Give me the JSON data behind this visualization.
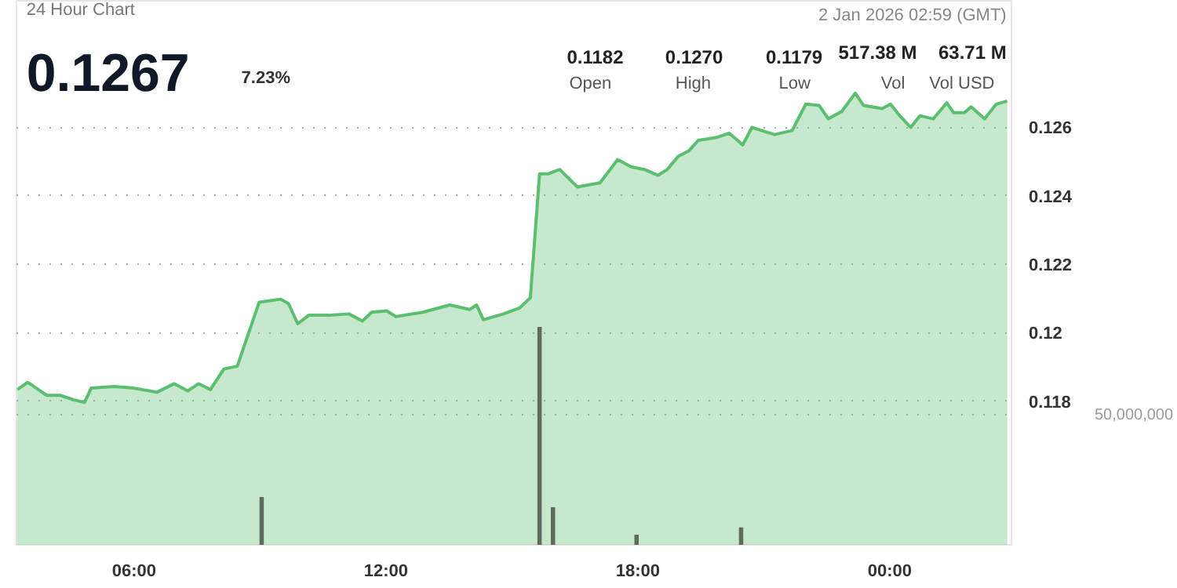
{
  "chart_data": {
    "type": "area",
    "title": "0.1267",
    "subtitle": "24 Hour Chart",
    "annotations": [
      "7.23%",
      "2 Jan 2026 02:59 (GMT)",
      "0.1182",
      "Open",
      "0.1270",
      "High",
      "0.1179",
      "Low",
      "517.38 M",
      "Vol",
      "63.71 M",
      "Vol USD"
    ],
    "x": [
      3.22,
      3.47,
      3.92,
      4.24,
      4.56,
      4.82,
      4.98,
      5.52,
      6.0,
      6.54,
      6.96,
      7.28,
      7.54,
      7.82,
      8.14,
      8.46,
      8.98,
      9.49,
      9.68,
      9.9,
      10.16,
      10.64,
      11.12,
      11.44,
      11.66,
      12.02,
      12.24,
      12.88,
      13.52,
      14.0,
      14.16,
      14.32,
      14.8,
      15.18,
      15.44,
      15.66,
      15.86,
      16.14,
      16.56,
      17.1,
      17.52,
      17.84,
      18.16,
      18.48,
      18.7,
      18.96,
      19.22,
      19.44,
      19.86,
      20.18,
      20.5,
      20.72,
      20.94,
      21.26,
      21.68,
      22.0,
      22.32,
      22.54,
      22.86,
      23.18,
      23.38,
      23.82,
      24.02,
      24.24,
      24.5,
      24.72,
      25.04,
      25.36,
      25.52,
      25.78,
      25.94,
      26.26,
      26.54,
      26.8
    ],
    "series": [
      {
        "color": "#5cbf6f",
        "values": [
          0.11834,
          0.11855,
          0.11817,
          0.11817,
          0.11804,
          0.11796,
          0.11838,
          0.11843,
          0.11838,
          0.11826,
          0.11851,
          0.1183,
          0.11851,
          0.11834,
          0.11894,
          0.11902,
          0.12089,
          0.12098,
          0.12085,
          0.12026,
          0.12051,
          0.12051,
          0.12055,
          0.12034,
          0.1206,
          0.12064,
          0.12047,
          0.1206,
          0.12081,
          0.12068,
          0.12081,
          0.12038,
          0.12055,
          0.12072,
          0.12102,
          0.12464,
          0.12464,
          0.12477,
          0.12426,
          0.12438,
          0.12506,
          0.12485,
          0.12477,
          0.1246,
          0.12477,
          0.12515,
          0.12532,
          0.12562,
          0.1257,
          0.12583,
          0.12549,
          0.126,
          0.12591,
          0.12579,
          0.12591,
          0.12668,
          0.12664,
          0.12625,
          0.12647,
          0.127,
          0.12664,
          0.12655,
          0.12668,
          0.12634,
          0.126,
          0.12634,
          0.12625,
          0.12672,
          0.12643,
          0.12643,
          0.1266,
          0.12625,
          0.12668,
          0.12677
        ]
      },
      {
        "type": "bar",
        "axis": "y2",
        "color": "#5f6b60",
        "x": [
          9.04,
          15.66,
          15.98,
          17.97,
          20.46
        ],
        "values": [
          18300000,
          83300000,
          14400000,
          3900000,
          6700000
        ]
      }
    ],
    "xlim": [
      3.2,
      26.9
    ],
    "xticks": [
      {
        "value": 6,
        "label": "06:00"
      },
      {
        "value": 12,
        "label": "12:00"
      },
      {
        "value": 18,
        "label": "18:00"
      },
      {
        "value": 24,
        "label": "00:00"
      }
    ],
    "ylim": [
      0.1138,
      0.1297
    ],
    "yticks": [
      0.118,
      0.12,
      0.122,
      0.124,
      0.126
    ],
    "y2lim": [
      0,
      208000000
    ],
    "y2ticks": [
      {
        "value": 50000000,
        "label": "50,000,000"
      }
    ],
    "grid": "y"
  }
}
